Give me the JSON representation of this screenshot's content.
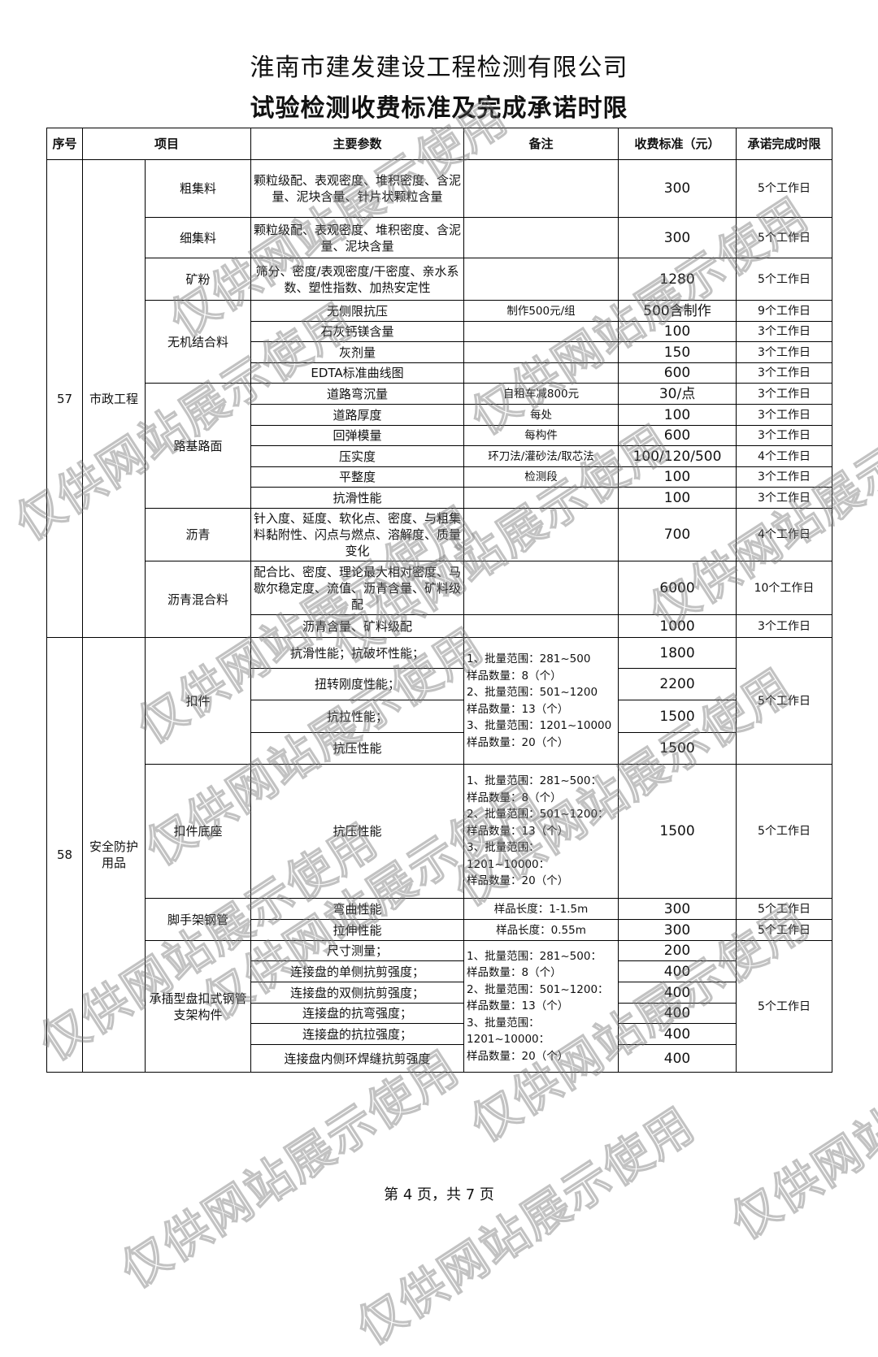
{
  "header": {
    "company": "淮南市建发建设工程检测有限公司",
    "subtitle": "试验检测收费标准及完成承诺时限"
  },
  "columns": [
    "序号",
    "项目",
    "主要参数",
    "备注",
    "收费标准（元）",
    "承诺完成时限"
  ],
  "sections": [
    {
      "no": "57",
      "category": "市政工程",
      "groups": [
        {
          "name": "粗集料",
          "items": [
            {
              "param": "颗粒级配、表观密度、堆积密度、含泥量、泥块含量、针片状颗粒含量",
              "remark": "",
              "fee": "300",
              "time": "5个工作日"
            }
          ]
        },
        {
          "name": "细集料",
          "items": [
            {
              "param": "颗粒级配、表观密度、堆积密度、含泥量、泥块含量",
              "remark": "",
              "fee": "300",
              "time": "5个工作日"
            }
          ]
        },
        {
          "name": "矿粉",
          "items": [
            {
              "param": "筛分、密度/表观密度/干密度、亲水系数、塑性指数、加热安定性",
              "remark": "",
              "fee": "1280",
              "time": "5个工作日"
            }
          ]
        },
        {
          "name": "无机结合料",
          "items": [
            {
              "param": "无侧限抗压",
              "remark": "制作500元/组",
              "fee": "500含制作",
              "time": "9个工作日"
            },
            {
              "param": "石灰钙镁含量",
              "remark": "",
              "fee": "100",
              "time": "3个工作日"
            },
            {
              "param": "灰剂量",
              "remark": "",
              "fee": "150",
              "time": "3个工作日"
            },
            {
              "param": "EDTA标准曲线图",
              "remark": "",
              "fee": "600",
              "time": "3个工作日"
            }
          ]
        },
        {
          "name": "路基路面",
          "items": [
            {
              "param": "道路弯沉量",
              "remark": "自租车减800元",
              "fee": "30/点",
              "time": "3个工作日"
            },
            {
              "param": "道路厚度",
              "remark": "每处",
              "fee": "100",
              "time": "3个工作日"
            },
            {
              "param": "回弹模量",
              "remark": "每构件",
              "fee": "600",
              "time": "3个工作日"
            },
            {
              "param": "压实度",
              "remark": "环刀法/灌砂法/取芯法",
              "fee": "100/120/500",
              "time": "4个工作日"
            },
            {
              "param": "平整度",
              "remark": "检测段",
              "fee": "100",
              "time": "3个工作日"
            },
            {
              "param": "抗滑性能",
              "remark": "",
              "fee": "100",
              "time": "3个工作日"
            }
          ]
        },
        {
          "name": "沥青",
          "items": [
            {
              "param": "针入度、延度、软化点、密度、与粗集料黏附性、闪点与燃点、溶解度、质量变化",
              "remark": "",
              "fee": "700",
              "time": "4个工作日"
            }
          ]
        },
        {
          "name": "沥青混合料",
          "items": [
            {
              "param": "配合比、密度、理论最大相对密度、马歇尔稳定度、流值、沥青含量、矿料级配",
              "remark": "",
              "fee": "6000",
              "time": "10个工作日"
            },
            {
              "param": "沥青含量、矿料级配",
              "remark": "",
              "fee": "1000",
              "time": "3个工作日"
            }
          ]
        }
      ]
    },
    {
      "no": "58",
      "category": "安全防护用品",
      "groups": [
        {
          "name": "扣件",
          "remark": "1、批量范围：281~500\n样品数量：8（个）\n2、批量范围：501~1200\n样品数量：13（个）\n3、批量范围：1201~10000\n样品数量：20（个）",
          "time": "5个工作日",
          "items": [
            {
              "param": "抗滑性能；抗破坏性能；",
              "fee": "1800"
            },
            {
              "param": "扭转刚度性能；",
              "fee": "2200"
            },
            {
              "param": "抗拉性能；",
              "fee": "1500"
            },
            {
              "param": "抗压性能",
              "fee": "1500"
            }
          ]
        },
        {
          "name": "扣件底座",
          "items": [
            {
              "param": "抗压性能",
              "remark": "1、批量范围：281~500：\n样品数量：8（个）\n2、批量范围：501~1200：\n样品数量：13（个）\n3、批量范围：\n1201~10000：\n样品数量：20（个）",
              "fee": "1500",
              "time": "5个工作日"
            }
          ]
        },
        {
          "name": "脚手架钢管",
          "items": [
            {
              "param": "弯曲性能",
              "remark": "样品长度：1-1.5m",
              "fee": "300",
              "time": "5个工作日"
            },
            {
              "param": "拉伸性能",
              "remark": "样品长度：0.55m",
              "fee": "300",
              "time": "5个工作日"
            }
          ]
        },
        {
          "name": "承插型盘扣式钢管支架构件",
          "remark": "1、批量范围：281~500：\n样品数量：8（个）\n2、批量范围：501~1200：\n样品数量：13（个）\n3、批量范围：\n1201~10000：\n样品数量：20（个）",
          "time": "5个工作日",
          "items": [
            {
              "param": "尺寸测量；",
              "fee": "200"
            },
            {
              "param": "连接盘的单侧抗剪强度；",
              "fee": "400"
            },
            {
              "param": "连接盘的双侧抗剪强度；",
              "fee": "400"
            },
            {
              "param": "连接盘的抗弯强度；",
              "fee": "400"
            },
            {
              "param": "连接盘的抗拉强度；",
              "fee": "400"
            },
            {
              "param": "连接盘内侧环焊缝抗剪强度",
              "fee": "400"
            }
          ]
        }
      ]
    }
  ],
  "footer": "第 4 页，共 7 页",
  "watermark": "仅供网站展示使用"
}
